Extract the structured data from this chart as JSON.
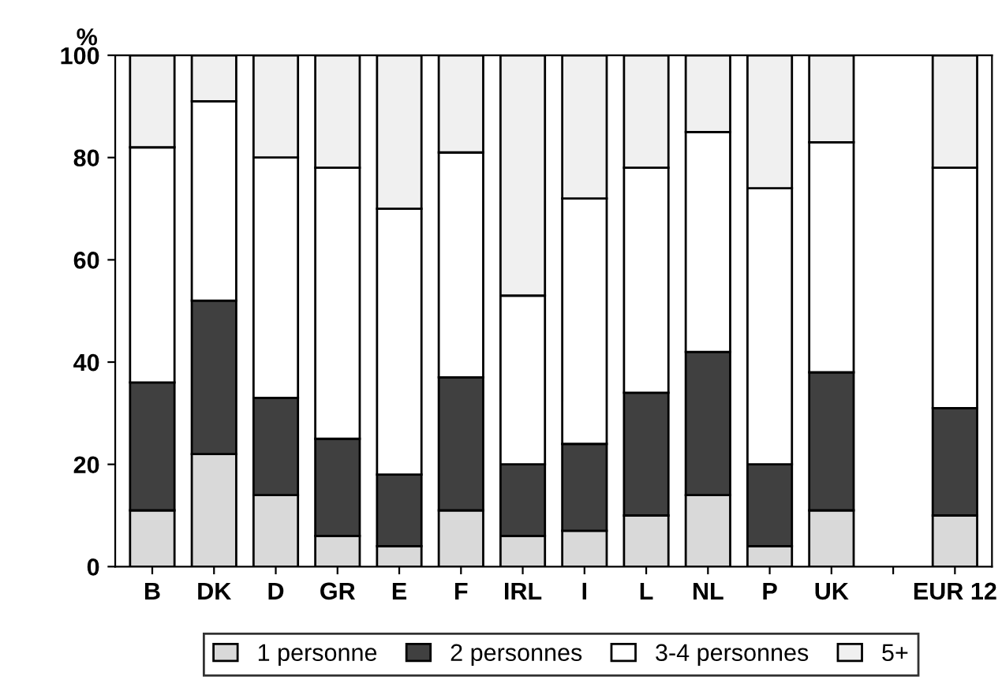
{
  "chart_data": {
    "type": "bar",
    "stacked": true,
    "ylabel": "%",
    "categories": [
      "B",
      "DK",
      "D",
      "GR",
      "E",
      "F",
      "IRL",
      "I",
      "L",
      "NL",
      "P",
      "UK",
      null,
      "EUR 12"
    ],
    "series": [
      {
        "name": "1 personne",
        "color": "#d9d9d9",
        "values": [
          11,
          22,
          14,
          6,
          4,
          11,
          6,
          7,
          10,
          14,
          4,
          11,
          null,
          10
        ]
      },
      {
        "name": "2 personnes",
        "color": "#404040",
        "values": [
          25,
          30,
          19,
          19,
          14,
          26,
          14,
          17,
          24,
          28,
          16,
          27,
          null,
          21
        ]
      },
      {
        "name": "3-4 personnes",
        "color": "#ffffff",
        "values": [
          46,
          39,
          47,
          53,
          52,
          44,
          33,
          48,
          44,
          43,
          54,
          45,
          null,
          47
        ]
      },
      {
        "name": "5+",
        "color": "#f0f0f0",
        "values": [
          18,
          9,
          20,
          22,
          30,
          19,
          47,
          28,
          22,
          15,
          26,
          17,
          null,
          22
        ]
      }
    ],
    "ylim": [
      0,
      100
    ],
    "yticks": [
      0,
      20,
      40,
      60,
      80,
      100
    ],
    "grid": false,
    "legend": "bottom"
  }
}
